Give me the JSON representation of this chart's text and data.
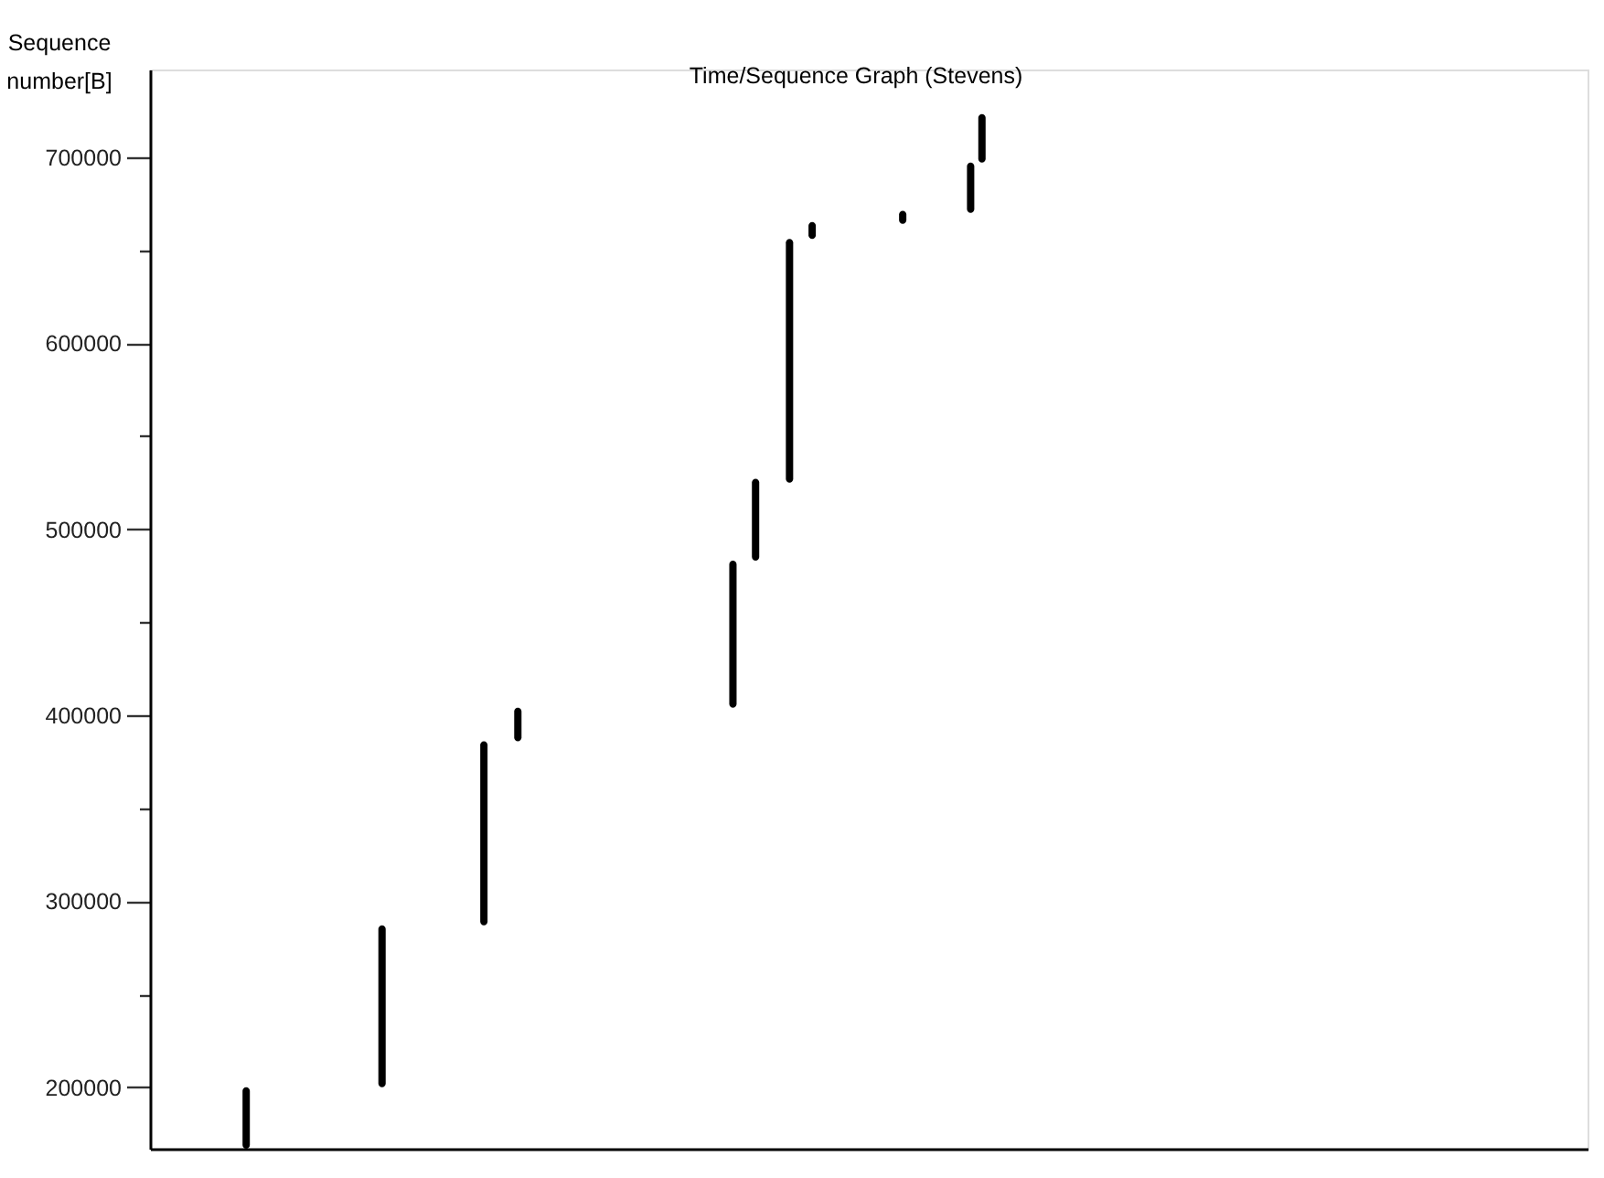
{
  "chart_data": {
    "type": "bar",
    "title": "Time/Sequence Graph (Stevens)",
    "ylabel": "Sequence number[B]",
    "categories": [
      null,
      null,
      null,
      null,
      null,
      null,
      null,
      null,
      null,
      null,
      null,
      null,
      null,
      null,
      null,
      null,
      null,
      null,
      null,
      null,
      null,
      null,
      null,
      null,
      null,
      null,
      null,
      null,
      null,
      null,
      null,
      null,
      null,
      null,
      null,
      null,
      null,
      null,
      null,
      null,
      null,
      null,
      null,
      null,
      null,
      null,
      null,
      null,
      null,
      null,
      null,
      null,
      null,
      null,
      null,
      null,
      null,
      null,
      null,
      null,
      null,
      null,
      null,
      null,
      null,
      null,
      null,
      null,
      null,
      null,
      null,
      null,
      null,
      null,
      null,
      null,
      null,
      null,
      null,
      null,
      null,
      null,
      null,
      null,
      null,
      null,
      null,
      null,
      null,
      null,
      null,
      null,
      null,
      null,
      null,
      null,
      null,
      null,
      null,
      null,
      null,
      null,
      null,
      null,
      null,
      null,
      null,
      null,
      null,
      null,
      null,
      null,
      null,
      null,
      null,
      null,
      null,
      null,
      null,
      null,
      null,
      null,
      null,
      null,
      null,
      null,
      null
    ],
    "values": [
      null,
      null,
      null,
      null,
      null,
      null,
      null,
      null,
      33000,
      null,
      null,
      null,
      null,
      null,
      null,
      null,
      null,
      null,
      null,
      null,
      87000,
      null,
      null,
      null,
      null,
      null,
      null,
      null,
      null,
      99000,
      null,
      null,
      18000,
      null,
      null,
      null,
      null,
      null,
      null,
      null,
      null,
      null,
      null,
      null,
      null,
      null,
      null,
      null,
      null,
      null,
      null,
      79000,
      null,
      44000,
      null,
      null,
      131000,
      null,
      9000,
      null,
      null,
      null,
      null,
      null,
      null,
      null,
      7000,
      null,
      null,
      null,
      null,
      null,
      27000,
      26000,
      null,
      null,
      null,
      null,
      null,
      null,
      null,
      null,
      null,
      null,
      null,
      null,
      null,
      null,
      null,
      null,
      null,
      null,
      null,
      null,
      null,
      null,
      null,
      null,
      null,
      null,
      null,
      null,
      null,
      null,
      null,
      null,
      null,
      null,
      null,
      null,
      null,
      null,
      null,
      null,
      null,
      null,
      null,
      null,
      null,
      null,
      null,
      null,
      null,
      null,
      null,
      null,
      null
    ],
    "base": [
      null,
      null,
      null,
      null,
      null,
      null,
      null,
      null,
      167000,
      null,
      null,
      null,
      null,
      null,
      null,
      null,
      null,
      null,
      null,
      null,
      200000,
      null,
      null,
      null,
      null,
      null,
      null,
      null,
      null,
      287000,
      null,
      null,
      386000,
      null,
      null,
      null,
      null,
      null,
      null,
      null,
      null,
      null,
      null,
      null,
      null,
      null,
      null,
      null,
      null,
      null,
      null,
      404000,
      null,
      483000,
      null,
      null,
      525000,
      null,
      656000,
      null,
      null,
      null,
      null,
      null,
      null,
      null,
      664000,
      null,
      null,
      null,
      null,
      null,
      670000,
      697000,
      null,
      null,
      null,
      null,
      null,
      null,
      null,
      null,
      null,
      null,
      null,
      null,
      null,
      null,
      null,
      null,
      null,
      null,
      null,
      null,
      null,
      null,
      null,
      null,
      null,
      null,
      null,
      null,
      null,
      null,
      null,
      null,
      null,
      null,
      null,
      null,
      null,
      null,
      null,
      null,
      null,
      null,
      null,
      null,
      null,
      null,
      null,
      null,
      null,
      null,
      null,
      null,
      null
    ],
    "color": "#000000",
    "ylim": [
      167000,
      747000
    ],
    "yticks": [
      200000,
      {
        "value": 250000,
        "label": null
      },
      300000,
      {
        "value": 350000,
        "label": null
      },
      400000,
      {
        "value": 450000,
        "label": null
      },
      500000,
      {
        "value": 550000,
        "label": null
      },
      600000,
      {
        "value": 650000,
        "label": null
      },
      700000
    ],
    "tick_labels": "y"
  }
}
